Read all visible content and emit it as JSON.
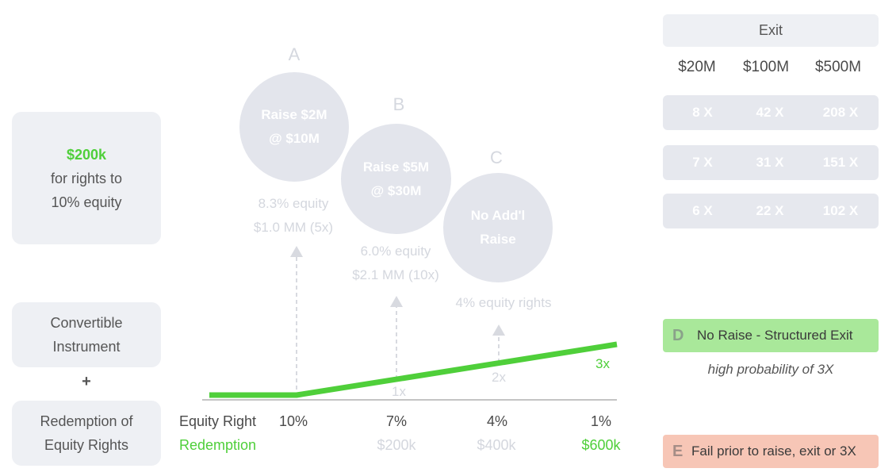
{
  "left": {
    "offer_amount": "$200k",
    "offer_line2": "for rights to",
    "offer_line3": "10% equity",
    "convertible_line1": "Convertible",
    "convertible_line2": "Instrument",
    "plus": "+",
    "redemption_line1": "Redemption of",
    "redemption_line2": "Equity Rights"
  },
  "scenarios": [
    {
      "letter": "A",
      "line1": "Raise $2M",
      "line2": "@ $10M",
      "equity": "8.3% equity",
      "value": "$1.0 MM (5x)"
    },
    {
      "letter": "B",
      "line1": "Raise $5M",
      "line2": "@ $30M",
      "equity": "6.0% equity",
      "value": "$2.1 MM (10x)"
    },
    {
      "letter": "C",
      "line1": "No Add'l",
      "line2": "Raise",
      "equity": "4% equity rights"
    }
  ],
  "chart": {
    "markers": [
      "1x",
      "2x",
      "3x"
    ],
    "row1_label": "Equity Right",
    "row1_values": [
      "10%",
      "7%",
      "4%",
      "1%"
    ],
    "row2_label": "Redemption",
    "row2_values": [
      "$200k",
      "$400k",
      "$600k"
    ]
  },
  "exit_table": {
    "header": "Exit",
    "columns": [
      "$20M",
      "$100M",
      "$500M"
    ],
    "rows": [
      [
        "8 X",
        "42 X",
        "208 X"
      ],
      [
        "7 X",
        "31 X",
        "151 X"
      ],
      [
        "6 X",
        "22 X",
        "102 X"
      ]
    ]
  },
  "outcome_d": {
    "letter": "D",
    "label": "No Raise - Structured Exit",
    "note": "high probability of 3X"
  },
  "outcome_e": {
    "letter": "E",
    "label": "Fail prior to raise, exit or 3X"
  },
  "colors": {
    "green": "#4fcf3a",
    "faint": "#d4d7de",
    "card": "#eef0f4",
    "bubble": "#e3e5ec",
    "d_bg": "#a9e89a",
    "e_bg": "#f7c6b6"
  }
}
